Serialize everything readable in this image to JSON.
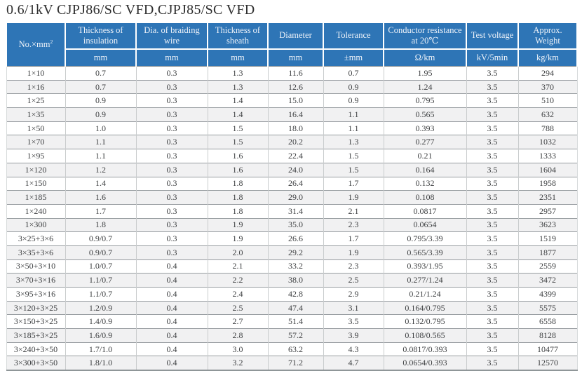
{
  "title": "0.6/1kV CJPJ86/SC VFD,CJPJ85/SC VFD",
  "colors": {
    "header_background": "#2e75b6",
    "header_text": "#edf2f9",
    "row_alternate": "#f1f1f2",
    "body_text": "#3e4042"
  },
  "table": {
    "columns": [
      {
        "id": "size",
        "label": "No.×mm",
        "sup": "2",
        "unit": ""
      },
      {
        "id": "insulation-thickness",
        "label": "Thickness of insulation",
        "unit": "mm"
      },
      {
        "id": "braiding-wire-dia",
        "label": "Dia. of braiding wire",
        "unit": "mm"
      },
      {
        "id": "sheath-thickness",
        "label": "Thickness of sheath",
        "unit": "mm"
      },
      {
        "id": "diameter",
        "label": "Diameter",
        "unit": "mm"
      },
      {
        "id": "tolerance",
        "label": "Tolerance",
        "unit": "±mm"
      },
      {
        "id": "conductor-resistance",
        "label": "Conductor resistance at 20℃",
        "unit": "Ω/km"
      },
      {
        "id": "test-voltage",
        "label": "Test voltage",
        "unit": "kV/5min"
      },
      {
        "id": "approx-weight",
        "label": "Approx. Weight",
        "unit": "kg/km"
      }
    ],
    "rows": [
      [
        "1×10",
        "0.7",
        "0.3",
        "1.3",
        "11.6",
        "0.7",
        "1.95",
        "3.5",
        "294"
      ],
      [
        "1×16",
        "0.7",
        "0.3",
        "1.3",
        "12.6",
        "0.9",
        "1.24",
        "3.5",
        "370"
      ],
      [
        "1×25",
        "0.9",
        "0.3",
        "1.4",
        "15.0",
        "0.9",
        "0.795",
        "3.5",
        "510"
      ],
      [
        "1×35",
        "0.9",
        "0.3",
        "1.4",
        "16.4",
        "1.1",
        "0.565",
        "3.5",
        "632"
      ],
      [
        "1×50",
        "1.0",
        "0.3",
        "1.5",
        "18.0",
        "1.1",
        "0.393",
        "3.5",
        "788"
      ],
      [
        "1×70",
        "1.1",
        "0.3",
        "1.5",
        "20.2",
        "1.3",
        "0.277",
        "3.5",
        "1032"
      ],
      [
        "1×95",
        "1.1",
        "0.3",
        "1.6",
        "22.4",
        "1.5",
        "0.21",
        "3.5",
        "1333"
      ],
      [
        "1×120",
        "1.2",
        "0.3",
        "1.6",
        "24.0",
        "1.5",
        "0.164",
        "3.5",
        "1604"
      ],
      [
        "1×150",
        "1.4",
        "0.3",
        "1.8",
        "26.4",
        "1.7",
        "0.132",
        "3.5",
        "1958"
      ],
      [
        "1×185",
        "1.6",
        "0.3",
        "1.8",
        "29.0",
        "1.9",
        "0.108",
        "3.5",
        "2351"
      ],
      [
        "1×240",
        "1.7",
        "0.3",
        "1.8",
        "31.4",
        "2.1",
        "0.0817",
        "3.5",
        "2957"
      ],
      [
        "1×300",
        "1.8",
        "0.3",
        "1.9",
        "35.0",
        "2.3",
        "0.0654",
        "3.5",
        "3623"
      ],
      [
        "3×25+3×6",
        "0.9/0.7",
        "0.3",
        "1.9",
        "26.6",
        "1.7",
        "0.795/3.39",
        "3.5",
        "1519"
      ],
      [
        "3×35+3×6",
        "0.9/0.7",
        "0.3",
        "2.0",
        "29.2",
        "1.9",
        "0.565/3.39",
        "3.5",
        "1877"
      ],
      [
        "3×50+3×10",
        "1.0/0.7",
        "0.4",
        "2.1",
        "33.2",
        "2.3",
        "0.393/1.95",
        "3.5",
        "2559"
      ],
      [
        "3×70+3×16",
        "1.1/0.7",
        "0.4",
        "2.2",
        "38.0",
        "2.5",
        "0.277/1.24",
        "3.5",
        "3472"
      ],
      [
        "3×95+3×16",
        "1.1/0.7",
        "0.4",
        "2.4",
        "42.8",
        "2.9",
        "0.21/1.24",
        "3.5",
        "4399"
      ],
      [
        "3×120+3×25",
        "1.2/0.9",
        "0.4",
        "2.5",
        "47.4",
        "3.1",
        "0.164/0.795",
        "3.5",
        "5575"
      ],
      [
        "3×150+3×25",
        "1.4/0.9",
        "0.4",
        "2.7",
        "51.4",
        "3.5",
        "0.132/0.795",
        "3.5",
        "6558"
      ],
      [
        "3×185+3×25",
        "1.6/0.9",
        "0.4",
        "2.8",
        "57.2",
        "3.9",
        "0.108/0.565",
        "3.5",
        "8128"
      ],
      [
        "3×240+3×50",
        "1.7/1.0",
        "0.4",
        "3.0",
        "63.2",
        "4.3",
        "0.0817/0.393",
        "3.5",
        "10477"
      ],
      [
        "3×300+3×50",
        "1.8/1.0",
        "0.4",
        "3.2",
        "71.2",
        "4.7",
        "0.0654/0.393",
        "3.5",
        "12570"
      ]
    ]
  }
}
